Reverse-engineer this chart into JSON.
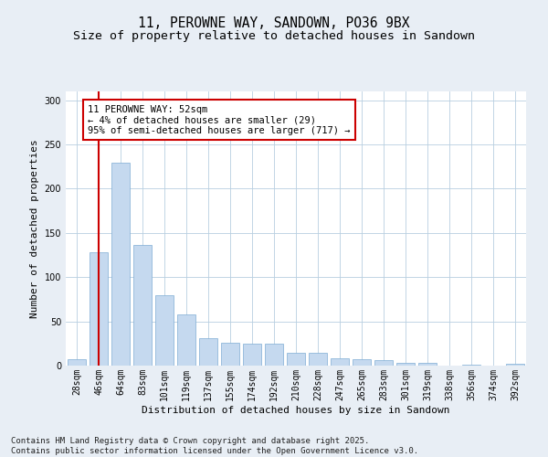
{
  "title_line1": "11, PEROWNE WAY, SANDOWN, PO36 9BX",
  "title_line2": "Size of property relative to detached houses in Sandown",
  "xlabel": "Distribution of detached houses by size in Sandown",
  "ylabel": "Number of detached properties",
  "categories": [
    "28sqm",
    "46sqm",
    "64sqm",
    "83sqm",
    "101sqm",
    "119sqm",
    "137sqm",
    "155sqm",
    "174sqm",
    "192sqm",
    "210sqm",
    "228sqm",
    "247sqm",
    "265sqm",
    "283sqm",
    "301sqm",
    "319sqm",
    "338sqm",
    "356sqm",
    "374sqm",
    "392sqm"
  ],
  "values": [
    7,
    128,
    229,
    136,
    80,
    58,
    31,
    26,
    25,
    25,
    14,
    14,
    8,
    7,
    6,
    3,
    3,
    0,
    1,
    0,
    2
  ],
  "bar_color": "#c5d9ef",
  "bar_edge_color": "#7eadd4",
  "vline_x": 1,
  "vline_color": "#cc0000",
  "annotation_text": "11 PEROWNE WAY: 52sqm\n← 4% of detached houses are smaller (29)\n95% of semi-detached houses are larger (717) →",
  "annotation_box_facecolor": "#ffffff",
  "annotation_box_edgecolor": "#cc0000",
  "ylim": [
    0,
    310
  ],
  "yticks": [
    0,
    50,
    100,
    150,
    200,
    250,
    300
  ],
  "bg_color": "#e8eef5",
  "plot_bg_color": "#ffffff",
  "footer_line1": "Contains HM Land Registry data © Crown copyright and database right 2025.",
  "footer_line2": "Contains public sector information licensed under the Open Government Licence v3.0.",
  "title_fontsize": 10.5,
  "subtitle_fontsize": 9.5,
  "axis_label_fontsize": 8,
  "tick_fontsize": 7,
  "annotation_fontsize": 7.5,
  "footer_fontsize": 6.5,
  "ylabel_fontsize": 8
}
